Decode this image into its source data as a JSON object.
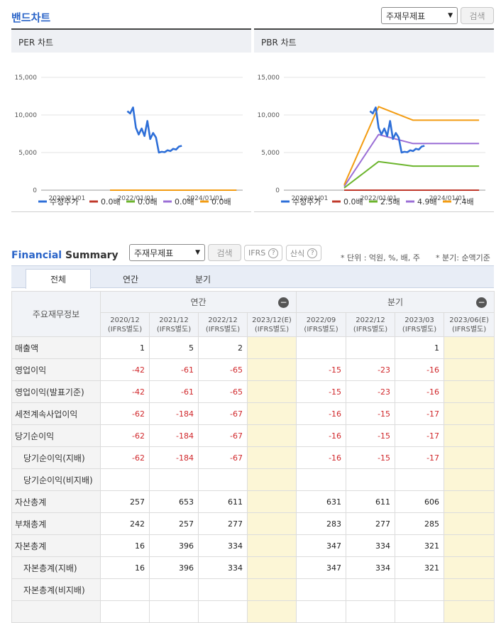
{
  "band": {
    "title": "밴드차트",
    "select_value": "주재무제표",
    "search_label": "검색"
  },
  "per_panel": {
    "title": "PER 차트",
    "legend": [
      {
        "label": "수정주가",
        "color": "#2e6fd8"
      },
      {
        "label": "0.0배",
        "color": "#c0392b"
      },
      {
        "label": "0.0배",
        "color": "#6cb52d"
      },
      {
        "label": "0.0배",
        "color": "#9b6fd6"
      },
      {
        "label": "0.0배",
        "color": "#f39c12"
      }
    ]
  },
  "pbr_panel": {
    "title": "PBR 차트",
    "legend": [
      {
        "label": "수정주가",
        "color": "#2e6fd8"
      },
      {
        "label": "0.0배",
        "color": "#c0392b"
      },
      {
        "label": "2.5배",
        "color": "#6cb52d"
      },
      {
        "label": "4.9배",
        "color": "#9b6fd6"
      },
      {
        "label": "7.4배",
        "color": "#f39c12"
      }
    ]
  },
  "chart_data": [
    {
      "type": "line",
      "title": "PER 차트",
      "ylim": [
        0,
        15000
      ],
      "y_ticks": [
        "15,000",
        "10,000",
        "5,000",
        "0"
      ],
      "x_ticks": [
        "2020/01/01",
        "2022/01/01",
        "2024/01/01"
      ],
      "series": [
        {
          "name": "수정주가",
          "color": "#2e6fd8",
          "points": [
            [
              "2021-10",
              10500
            ],
            [
              "2021-11",
              10200
            ],
            [
              "2021-12",
              11000
            ],
            [
              "2022-01",
              8300
            ],
            [
              "2022-02",
              7400
            ],
            [
              "2022-03",
              8200
            ],
            [
              "2022-04",
              7200
            ],
            [
              "2022-05",
              9200
            ],
            [
              "2022-06",
              6800
            ],
            [
              "2022-07",
              7600
            ],
            [
              "2022-08",
              7000
            ],
            [
              "2022-09",
              5000
            ],
            [
              "2022-10",
              5100
            ],
            [
              "2022-11",
              5050
            ],
            [
              "2022-12",
              5300
            ],
            [
              "2023-01",
              5200
            ],
            [
              "2023-02",
              5500
            ],
            [
              "2023-03",
              5400
            ],
            [
              "2023-04",
              5800
            ],
            [
              "2023-05",
              5900
            ]
          ]
        },
        {
          "name": "0.0배",
          "color": "#c0392b",
          "points": [
            [
              "2021-04",
              0
            ],
            [
              "2024-12",
              0
            ]
          ]
        },
        {
          "name": "0.0배",
          "color": "#6cb52d",
          "points": [
            [
              "2021-04",
              0
            ],
            [
              "2024-12",
              0
            ]
          ]
        },
        {
          "name": "0.0배",
          "color": "#9b6fd6",
          "points": [
            [
              "2021-04",
              0
            ],
            [
              "2024-12",
              0
            ]
          ]
        },
        {
          "name": "0.0배",
          "color": "#f39c12",
          "points": [
            [
              "2021-04",
              0
            ],
            [
              "2024-12",
              0
            ]
          ]
        }
      ]
    },
    {
      "type": "line",
      "title": "PBR 차트",
      "ylim": [
        0,
        15000
      ],
      "y_ticks": [
        "15,000",
        "10,000",
        "5,000",
        "0"
      ],
      "x_ticks": [
        "2020/01/01",
        "2022/01/01",
        "2024/01/01"
      ],
      "series": [
        {
          "name": "수정주가",
          "color": "#2e6fd8",
          "points": [
            [
              "2021-10",
              10500
            ],
            [
              "2021-11",
              10200
            ],
            [
              "2021-12",
              11000
            ],
            [
              "2022-01",
              8300
            ],
            [
              "2022-02",
              7400
            ],
            [
              "2022-03",
              8200
            ],
            [
              "2022-04",
              7200
            ],
            [
              "2022-05",
              9200
            ],
            [
              "2022-06",
              6800
            ],
            [
              "2022-07",
              7600
            ],
            [
              "2022-08",
              7000
            ],
            [
              "2022-09",
              5000
            ],
            [
              "2022-10",
              5100
            ],
            [
              "2022-11",
              5050
            ],
            [
              "2022-12",
              5300
            ],
            [
              "2023-01",
              5200
            ],
            [
              "2023-02",
              5500
            ],
            [
              "2023-03",
              5400
            ],
            [
              "2023-04",
              5800
            ],
            [
              "2023-05",
              5900
            ]
          ]
        },
        {
          "name": "0.0배",
          "color": "#c0392b",
          "points": [
            [
              "2021-01",
              0
            ],
            [
              "2024-12",
              0
            ]
          ]
        },
        {
          "name": "2.5배",
          "color": "#6cb52d",
          "points": [
            [
              "2021-01",
              300
            ],
            [
              "2022-01",
              3800
            ],
            [
              "2023-01",
              3200
            ],
            [
              "2024-12",
              3200
            ]
          ]
        },
        {
          "name": "4.9배",
          "color": "#9b6fd6",
          "points": [
            [
              "2021-01",
              500
            ],
            [
              "2022-01",
              7400
            ],
            [
              "2023-01",
              6200
            ],
            [
              "2024-12",
              6200
            ]
          ]
        },
        {
          "name": "7.4배",
          "color": "#f39c12",
          "points": [
            [
              "2021-01",
              700
            ],
            [
              "2022-01",
              11100
            ],
            [
              "2023-01",
              9300
            ],
            [
              "2024-12",
              9300
            ]
          ]
        }
      ]
    }
  ],
  "fs": {
    "title_a": "Financial",
    "title_b": " Summary",
    "select_value": "주재무제표",
    "search_label": "검색",
    "ifrs_label": "IFRS",
    "formula_label": "산식",
    "q_mark": "?",
    "unit_note": "* 단위 : 억원, %, 배, 주",
    "period_note": "* 분기: 순액기준",
    "tabs": [
      "전체",
      "연간",
      "분기"
    ],
    "header_label": "주요재무정보",
    "group_annual": "연간",
    "group_quarter": "분기",
    "collapse": "−",
    "columns": [
      {
        "date": "2020/12",
        "basis": "(IFRS별도)"
      },
      {
        "date": "2021/12",
        "basis": "(IFRS별도)"
      },
      {
        "date": "2022/12",
        "basis": "(IFRS별도)"
      },
      {
        "date": "2023/12(E)",
        "basis": "(IFRS별도)"
      },
      {
        "date": "2022/09",
        "basis": "(IFRS별도)"
      },
      {
        "date": "2022/12",
        "basis": "(IFRS별도)"
      },
      {
        "date": "2023/03",
        "basis": "(IFRS별도)"
      },
      {
        "date": "2023/06(E)",
        "basis": "(IFRS별도)"
      }
    ],
    "rows": [
      {
        "label": "매출액",
        "sub": false,
        "values": [
          "1",
          "5",
          "2",
          "",
          "",
          "",
          "1",
          ""
        ]
      },
      {
        "label": "영업이익",
        "sub": false,
        "values": [
          "-42",
          "-61",
          "-65",
          "",
          "-15",
          "-23",
          "-16",
          ""
        ]
      },
      {
        "label": "영업이익(발표기준)",
        "sub": false,
        "values": [
          "-42",
          "-61",
          "-65",
          "",
          "-15",
          "-23",
          "-16",
          ""
        ]
      },
      {
        "label": "세전계속사업이익",
        "sub": false,
        "values": [
          "-62",
          "-184",
          "-67",
          "",
          "-16",
          "-15",
          "-17",
          ""
        ]
      },
      {
        "label": "당기순이익",
        "sub": false,
        "values": [
          "-62",
          "-184",
          "-67",
          "",
          "-16",
          "-15",
          "-17",
          ""
        ]
      },
      {
        "label": "당기순이익(지배)",
        "sub": true,
        "values": [
          "-62",
          "-184",
          "-67",
          "",
          "-16",
          "-15",
          "-17",
          ""
        ]
      },
      {
        "label": "당기순이익(비지배)",
        "sub": true,
        "values": [
          "",
          "",
          "",
          "",
          "",
          "",
          "",
          ""
        ]
      },
      {
        "label": "자산총계",
        "sub": false,
        "values": [
          "257",
          "653",
          "611",
          "",
          "631",
          "611",
          "606",
          ""
        ]
      },
      {
        "label": "부채총계",
        "sub": false,
        "values": [
          "242",
          "257",
          "277",
          "",
          "283",
          "277",
          "285",
          ""
        ]
      },
      {
        "label": "자본총계",
        "sub": false,
        "values": [
          "16",
          "396",
          "334",
          "",
          "347",
          "334",
          "321",
          ""
        ]
      },
      {
        "label": "자본총계(지배)",
        "sub": true,
        "values": [
          "16",
          "396",
          "334",
          "",
          "347",
          "334",
          "321",
          ""
        ]
      },
      {
        "label": "자본총계(비지배)",
        "sub": true,
        "values": [
          "",
          "",
          "",
          "",
          "",
          "",
          "",
          ""
        ]
      },
      {
        "label": "",
        "sub": false,
        "values": [
          "",
          "",
          "",
          "",
          "",
          "",
          "",
          ""
        ]
      }
    ]
  }
}
